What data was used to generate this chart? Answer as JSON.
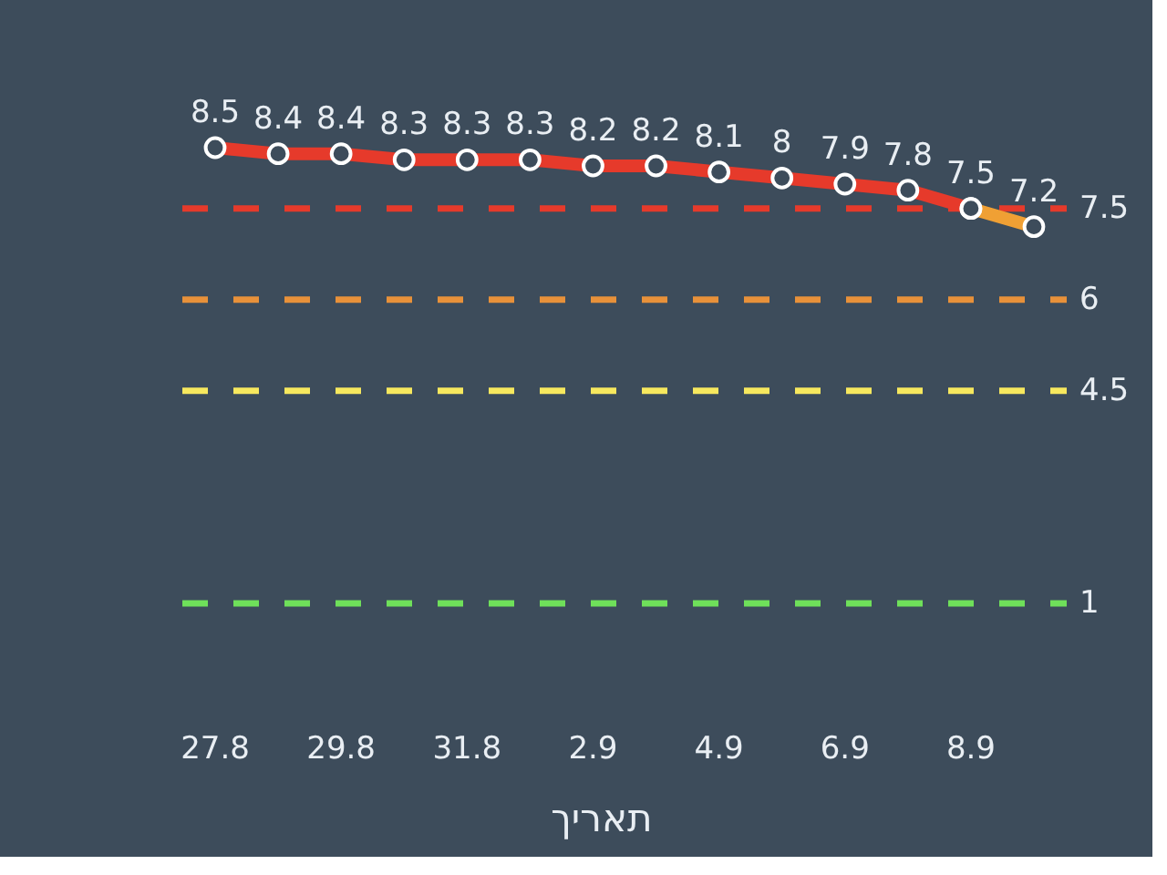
{
  "chart_data": {
    "type": "line",
    "xlabel": "תאריך",
    "categories": [
      "27.8",
      null,
      "29.8",
      null,
      "31.8",
      null,
      "2.9",
      null,
      "4.9",
      null,
      "6.9",
      null,
      "8.9",
      null
    ],
    "series": [
      {
        "color": "#e63a2b",
        "values": [
          8.5,
          8.4,
          8.4,
          8.3,
          8.3,
          8.3,
          8.2,
          8.2,
          8.1,
          8,
          7.9,
          7.8,
          7.5,
          null
        ],
        "value_labels": [
          "8.5",
          "8.4",
          "8.4",
          "8.3",
          "8.3",
          "8.3",
          "8.2",
          "8.2",
          "8.1",
          "8",
          "7.9",
          "7.8",
          "7.5",
          null
        ]
      },
      {
        "color": "#f0a034",
        "values": [
          null,
          null,
          null,
          null,
          null,
          null,
          null,
          null,
          null,
          null,
          null,
          null,
          7.5,
          7.2
        ],
        "value_labels": [
          null,
          null,
          null,
          null,
          null,
          null,
          null,
          null,
          null,
          null,
          null,
          null,
          null,
          "7.2"
        ]
      }
    ],
    "tick_labels": "x",
    "marker": "circle",
    "ref_lines": [
      {
        "axis": "y",
        "value": 7.5,
        "label": "7.5",
        "color": "#e63a2b",
        "line_style": "dashed"
      },
      {
        "axis": "y",
        "value": 6,
        "label": "6",
        "color": "#e8913a",
        "line_style": "dashed"
      },
      {
        "axis": "y",
        "value": 4.5,
        "label": "4.5",
        "color": "#f7e85e",
        "line_style": "dashed"
      },
      {
        "axis": "y",
        "value": 1,
        "label": "1",
        "color": "#6fe05a",
        "line_style": "dashed"
      }
    ]
  }
}
